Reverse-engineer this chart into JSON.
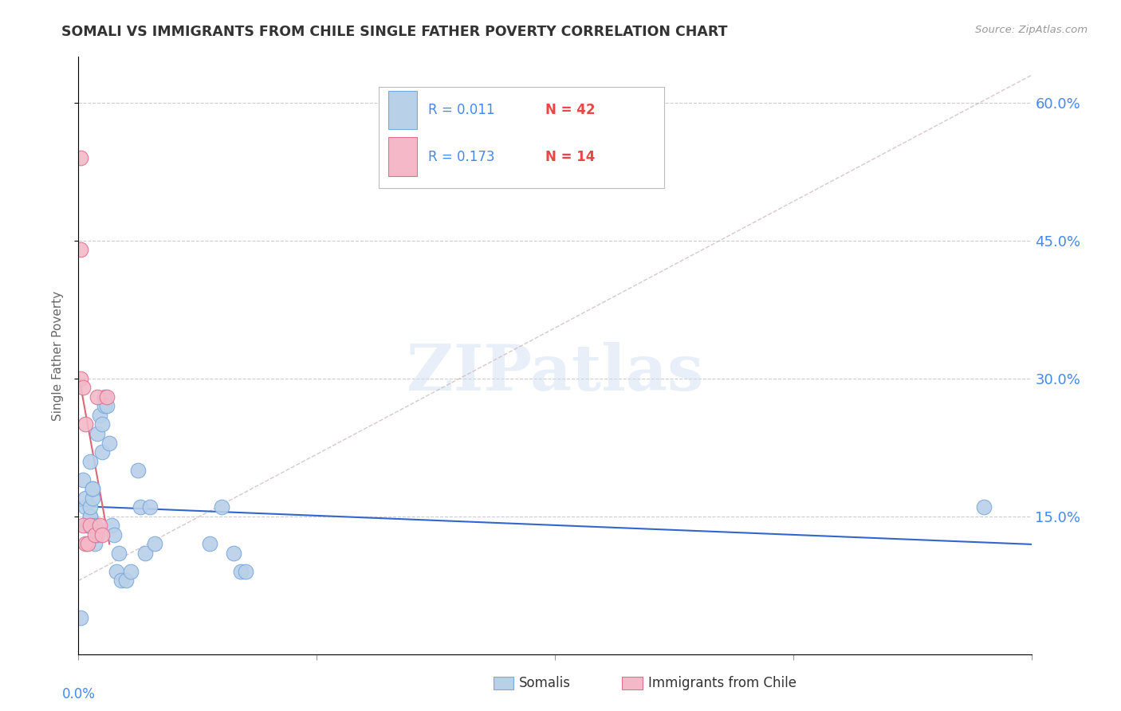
{
  "title": "SOMALI VS IMMIGRANTS FROM CHILE SINGLE FATHER POVERTY CORRELATION CHART",
  "source": "Source: ZipAtlas.com",
  "ylabel": "Single Father Poverty",
  "xlim": [
    0.0,
    0.4
  ],
  "ylim": [
    0.0,
    0.65
  ],
  "ytick_vals": [
    0.15,
    0.3,
    0.45,
    0.6
  ],
  "ytick_labels": [
    "15.0%",
    "30.0%",
    "45.0%",
    "60.0%"
  ],
  "somali_color": "#b8d0e8",
  "chile_color": "#f5b8c8",
  "somali_edge": "#7aaadd",
  "chile_edge": "#e07090",
  "trend_blue": "#3366cc",
  "trend_pink": "#dd6677",
  "dash_color": "#ccbbbb",
  "somali_x": [
    0.001,
    0.002,
    0.003,
    0.003,
    0.004,
    0.004,
    0.005,
    0.005,
    0.005,
    0.005,
    0.006,
    0.006,
    0.006,
    0.007,
    0.007,
    0.008,
    0.008,
    0.009,
    0.01,
    0.01,
    0.011,
    0.011,
    0.012,
    0.013,
    0.014,
    0.015,
    0.016,
    0.017,
    0.018,
    0.02,
    0.022,
    0.025,
    0.026,
    0.028,
    0.03,
    0.032,
    0.055,
    0.06,
    0.065,
    0.068,
    0.07,
    0.38
  ],
  "somali_y": [
    0.04,
    0.19,
    0.16,
    0.17,
    0.14,
    0.14,
    0.15,
    0.15,
    0.16,
    0.21,
    0.17,
    0.18,
    0.18,
    0.14,
    0.12,
    0.13,
    0.24,
    0.26,
    0.22,
    0.25,
    0.28,
    0.27,
    0.27,
    0.23,
    0.14,
    0.13,
    0.09,
    0.11,
    0.08,
    0.08,
    0.09,
    0.2,
    0.16,
    0.11,
    0.16,
    0.12,
    0.12,
    0.16,
    0.11,
    0.09,
    0.09,
    0.16
  ],
  "chile_x": [
    0.001,
    0.001,
    0.001,
    0.002,
    0.002,
    0.003,
    0.003,
    0.004,
    0.005,
    0.007,
    0.008,
    0.009,
    0.01,
    0.012
  ],
  "chile_y": [
    0.54,
    0.44,
    0.3,
    0.29,
    0.14,
    0.12,
    0.25,
    0.12,
    0.14,
    0.13,
    0.28,
    0.14,
    0.13,
    0.28
  ],
  "legend_r1": "R = 0.011",
  "legend_n1": "N = 42",
  "legend_r2": "R = 0.173",
  "legend_n2": "N = 14"
}
